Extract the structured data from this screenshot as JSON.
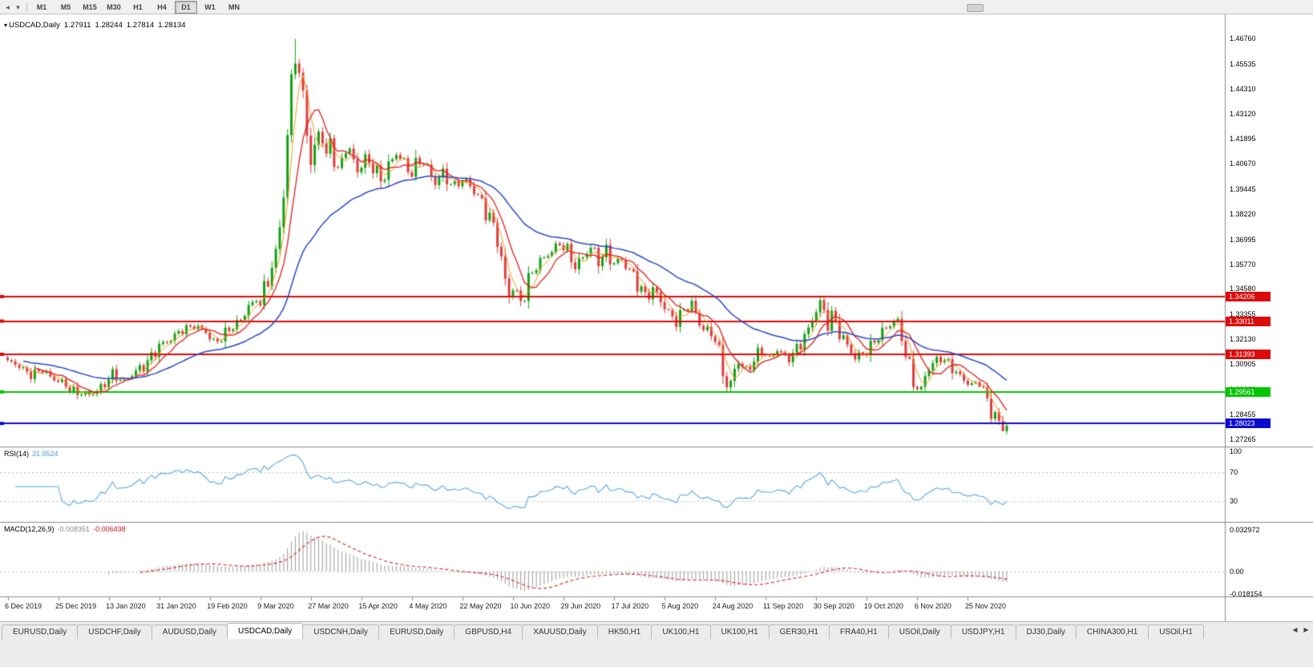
{
  "icons": {
    "back": "◂",
    "caret": "▾",
    "one_click": "▾",
    "tab_scroll_left": "◀",
    "tab_scroll_right": "▶"
  },
  "toolbar": {
    "timeframes": [
      {
        "label": "M1",
        "active": false
      },
      {
        "label": "M5",
        "active": false
      },
      {
        "label": "M15",
        "active": false
      },
      {
        "label": "M30",
        "active": false
      },
      {
        "label": "H1",
        "active": false
      },
      {
        "label": "H4",
        "active": false
      },
      {
        "label": "D1",
        "active": true
      },
      {
        "label": "W1",
        "active": false
      },
      {
        "label": "MN",
        "active": false
      }
    ]
  },
  "chart": {
    "title": {
      "symbol_period": "USDCAD,Daily",
      "open": "1.27911",
      "high": "1.28244",
      "low": "1.27814",
      "close": "1.28134"
    }
  },
  "chart_data": {
    "type": "candlestick",
    "symbol": "USDCAD",
    "timeframe": "Daily",
    "current_bar": {
      "open": 1.27911,
      "high": 1.28244,
      "low": 1.27814,
      "close": 1.28134
    },
    "visible_bars": 258,
    "bars_per_date_tick": 13,
    "ylim": [
      1.269,
      1.4795
    ],
    "price_ticks": [
      "1.46760",
      "1.45535",
      "1.44310",
      "1.43120",
      "1.41895",
      "1.40670",
      "1.39445",
      "1.38220",
      "1.36995",
      "1.35770",
      "1.34580",
      "1.33355",
      "1.32130",
      "1.30905",
      "1.29680",
      "1.28455",
      "1.27265"
    ],
    "date_ticks": [
      "6 Dec 2019",
      "25 Dec 2019",
      "13 Jan 2020",
      "31 Jan 2020",
      "19 Feb 2020",
      "9 Mar 2020",
      "27 Mar 2020",
      "15 Apr 2020",
      "4 May 2020",
      "22 May 2020",
      "10 Jun 2020",
      "29 Jun 2020",
      "17 Jul 2020",
      "5 Aug 2020",
      "24 Aug 2020",
      "11 Sep 2020",
      "30 Sep 2020",
      "19 Oct 2020",
      "6 Nov 2020",
      "25 Nov 2020"
    ],
    "up_color": "#12a212",
    "down_color": "#e23b3b",
    "horizontal_lines": [
      {
        "price": 1.34206,
        "label": "1.34206",
        "color": "#dd0a0a",
        "badge_text_color": "#ffffff"
      },
      {
        "price": 1.33011,
        "label": "1.33011",
        "color": "#dd0a0a",
        "badge_text_color": "#ffffff"
      },
      {
        "price": 1.31393,
        "label": "1.31393",
        "color": "#dd0a0a",
        "badge_text_color": "#ffffff"
      },
      {
        "price": 1.29561,
        "label": "1.29561",
        "color": "#00c600",
        "badge_text_color": "#ffffff"
      },
      {
        "price": 1.28023,
        "label": "1.28023",
        "color": "#0b0bd0",
        "badge_text_color": "#ffffff"
      }
    ],
    "moving_averages": [
      {
        "type": "sma",
        "period": 4,
        "color": "#f59a23",
        "width": 1
      },
      {
        "type": "sma",
        "period": 8,
        "color": "#e81c1c",
        "width": 1.3
      },
      {
        "type": "ema",
        "period": 34,
        "color": "#2b48c8",
        "width": 1.5
      }
    ],
    "price_path_anchors": [
      [
        0,
        1.3105
      ],
      [
        3,
        1.308
      ],
      [
        6,
        1.3042
      ],
      [
        9,
        1.306
      ],
      [
        12,
        1.302
      ],
      [
        15,
        1.2985
      ],
      [
        18,
        1.2952
      ],
      [
        21,
        1.2942
      ],
      [
        24,
        1.298
      ],
      [
        27,
        1.3035
      ],
      [
        30,
        1.301
      ],
      [
        33,
        1.3052
      ],
      [
        36,
        1.3105
      ],
      [
        39,
        1.3175
      ],
      [
        42,
        1.322
      ],
      [
        45,
        1.3255
      ],
      [
        48,
        1.3282
      ],
      [
        51,
        1.3245
      ],
      [
        53,
        1.3195
      ],
      [
        55,
        1.3225
      ],
      [
        58,
        1.3272
      ],
      [
        60,
        1.331
      ],
      [
        62,
        1.3385
      ],
      [
        63,
        1.3362
      ],
      [
        64,
        1.342
      ],
      [
        65,
        1.3392
      ],
      [
        66,
        1.3455
      ],
      [
        67,
        1.3512
      ],
      [
        68,
        1.3568
      ],
      [
        69,
        1.362
      ],
      [
        70,
        1.3755
      ],
      [
        71,
        1.392
      ],
      [
        72,
        1.421
      ],
      [
        73,
        1.448
      ],
      [
        74,
        1.46
      ],
      [
        75,
        1.4495
      ],
      [
        76,
        1.438
      ],
      [
        77,
        1.4245
      ],
      [
        78,
        1.4058
      ],
      [
        79,
        1.415
      ],
      [
        80,
        1.4235
      ],
      [
        81,
        1.418
      ],
      [
        82,
        1.409
      ],
      [
        83,
        1.417
      ],
      [
        84,
        1.4105
      ],
      [
        85,
        1.4025
      ],
      [
        86,
        1.4085
      ],
      [
        87,
        1.4155
      ],
      [
        88,
        1.411
      ],
      [
        90,
        1.404
      ],
      [
        92,
        1.4095
      ],
      [
        94,
        1.4045
      ],
      [
        96,
        1.399
      ],
      [
        98,
        1.406
      ],
      [
        100,
        1.4115
      ],
      [
        102,
        1.407
      ],
      [
        104,
        1.4025
      ],
      [
        106,
        1.4085
      ],
      [
        108,
        1.4045
      ],
      [
        110,
        1.3985
      ],
      [
        112,
        1.402
      ],
      [
        114,
        1.3965
      ],
      [
        116,
        1.3975
      ],
      [
        118,
        1.3985
      ],
      [
        120,
        1.393
      ],
      [
        122,
        1.389
      ],
      [
        124,
        1.38
      ],
      [
        126,
        1.37
      ],
      [
        127,
        1.36
      ],
      [
        128,
        1.3505
      ],
      [
        129,
        1.344
      ],
      [
        130,
        1.346
      ],
      [
        131,
        1.3415
      ],
      [
        132,
        1.339
      ],
      [
        133,
        1.3445
      ],
      [
        134,
        1.35
      ],
      [
        135,
        1.3545
      ],
      [
        136,
        1.358
      ],
      [
        138,
        1.3605
      ],
      [
        140,
        1.365
      ],
      [
        142,
        1.368
      ],
      [
        144,
        1.364
      ],
      [
        146,
        1.3575
      ],
      [
        148,
        1.3615
      ],
      [
        150,
        1.3655
      ],
      [
        152,
        1.36
      ],
      [
        154,
        1.3645
      ],
      [
        156,
        1.3575
      ],
      [
        158,
        1.3605
      ],
      [
        160,
        1.355
      ],
      [
        162,
        1.348
      ],
      [
        164,
        1.342
      ],
      [
        166,
        1.346
      ],
      [
        168,
        1.3395
      ],
      [
        170,
        1.334
      ],
      [
        172,
        1.3305
      ],
      [
        174,
        1.335
      ],
      [
        176,
        1.3385
      ],
      [
        178,
        1.33
      ],
      [
        180,
        1.324
      ],
      [
        182,
        1.3215
      ],
      [
        183,
        1.314
      ],
      [
        184,
        1.306
      ],
      [
        185,
        1.3005
      ],
      [
        186,
        1.2995
      ],
      [
        187,
        1.306
      ],
      [
        188,
        1.3105
      ],
      [
        190,
        1.3065
      ],
      [
        192,
        1.311
      ],
      [
        194,
        1.3155
      ],
      [
        196,
        1.312
      ],
      [
        198,
        1.3165
      ],
      [
        200,
        1.311
      ],
      [
        202,
        1.3145
      ],
      [
        204,
        1.3195
      ],
      [
        206,
        1.325
      ],
      [
        207,
        1.331
      ],
      [
        208,
        1.337
      ],
      [
        209,
        1.3395
      ],
      [
        210,
        1.334
      ],
      [
        211,
        1.3295
      ],
      [
        212,
        1.332
      ],
      [
        214,
        1.3255
      ],
      [
        216,
        1.318
      ],
      [
        218,
        1.312
      ],
      [
        220,
        1.3145
      ],
      [
        222,
        1.318
      ],
      [
        224,
        1.322
      ],
      [
        226,
        1.327
      ],
      [
        228,
        1.331
      ],
      [
        229,
        1.328
      ],
      [
        230,
        1.322
      ],
      [
        231,
        1.314
      ],
      [
        232,
        1.307
      ],
      [
        233,
        1.302
      ],
      [
        234,
        1.2985
      ],
      [
        235,
        1.2962
      ],
      [
        236,
        1.303
      ],
      [
        237,
        1.307
      ],
      [
        238,
        1.3095
      ],
      [
        240,
        1.313
      ],
      [
        242,
        1.3085
      ],
      [
        244,
        1.305
      ],
      [
        246,
        1.302
      ],
      [
        248,
        1.2985
      ],
      [
        250,
        1.3
      ],
      [
        251,
        1.2955
      ],
      [
        252,
        1.2915
      ],
      [
        253,
        1.287
      ],
      [
        254,
        1.2832
      ],
      [
        255,
        1.2795
      ],
      [
        256,
        1.277
      ],
      [
        257,
        1.2813
      ]
    ],
    "wick_overrides": [
      {
        "i": 74,
        "high": 1.4676
      },
      {
        "i": 209,
        "high": 1.3419
      },
      {
        "i": 256,
        "low": 1.2766
      }
    ],
    "indicators": {
      "rsi": {
        "name": "RSI(14)",
        "value": "31.9524",
        "period": 14,
        "axis_labels": [
          "100",
          "70",
          "30"
        ],
        "level_lines": [
          70,
          30
        ],
        "line_color": "#57a7e8"
      },
      "macd": {
        "name": "MACD(12,26,9)",
        "value_main": "-0.008351",
        "value_signal": "-0.006498",
        "fast": 12,
        "slow": 26,
        "signal": 9,
        "axis_labels": [
          "0.032972",
          "0.00",
          "-0.018154"
        ],
        "axis_max": 0.032972,
        "axis_min": -0.018154,
        "hist_color": "#9a9a9a",
        "signal_color": "#e02020"
      }
    }
  },
  "tabs": {
    "items": [
      {
        "label": "EURUSD,Daily",
        "active": false
      },
      {
        "label": "USDCHF,Daily",
        "active": false
      },
      {
        "label": "AUDUSD,Daily",
        "active": false
      },
      {
        "label": "USDCAD,Daily",
        "active": true
      },
      {
        "label": "USDCNH,Daily",
        "active": false
      },
      {
        "label": "EURUSD,Daily",
        "active": false
      },
      {
        "label": "GBPUSD,H4",
        "active": false
      },
      {
        "label": "XAUUSD,Daily",
        "active": false
      },
      {
        "label": "HK50,H1",
        "active": false
      },
      {
        "label": "UK100,H1",
        "active": false
      },
      {
        "label": "UK100,H1",
        "active": false
      },
      {
        "label": "GER30,H1",
        "active": false
      },
      {
        "label": "FRA40,H1",
        "active": false
      },
      {
        "label": "USOil,Daily",
        "active": false
      },
      {
        "label": "USDJPY,H1",
        "active": false
      },
      {
        "label": "DJ30,Daily",
        "active": false
      },
      {
        "label": "CHINA300,H1",
        "active": false
      },
      {
        "label": "USOil,H1",
        "active": false
      }
    ]
  }
}
